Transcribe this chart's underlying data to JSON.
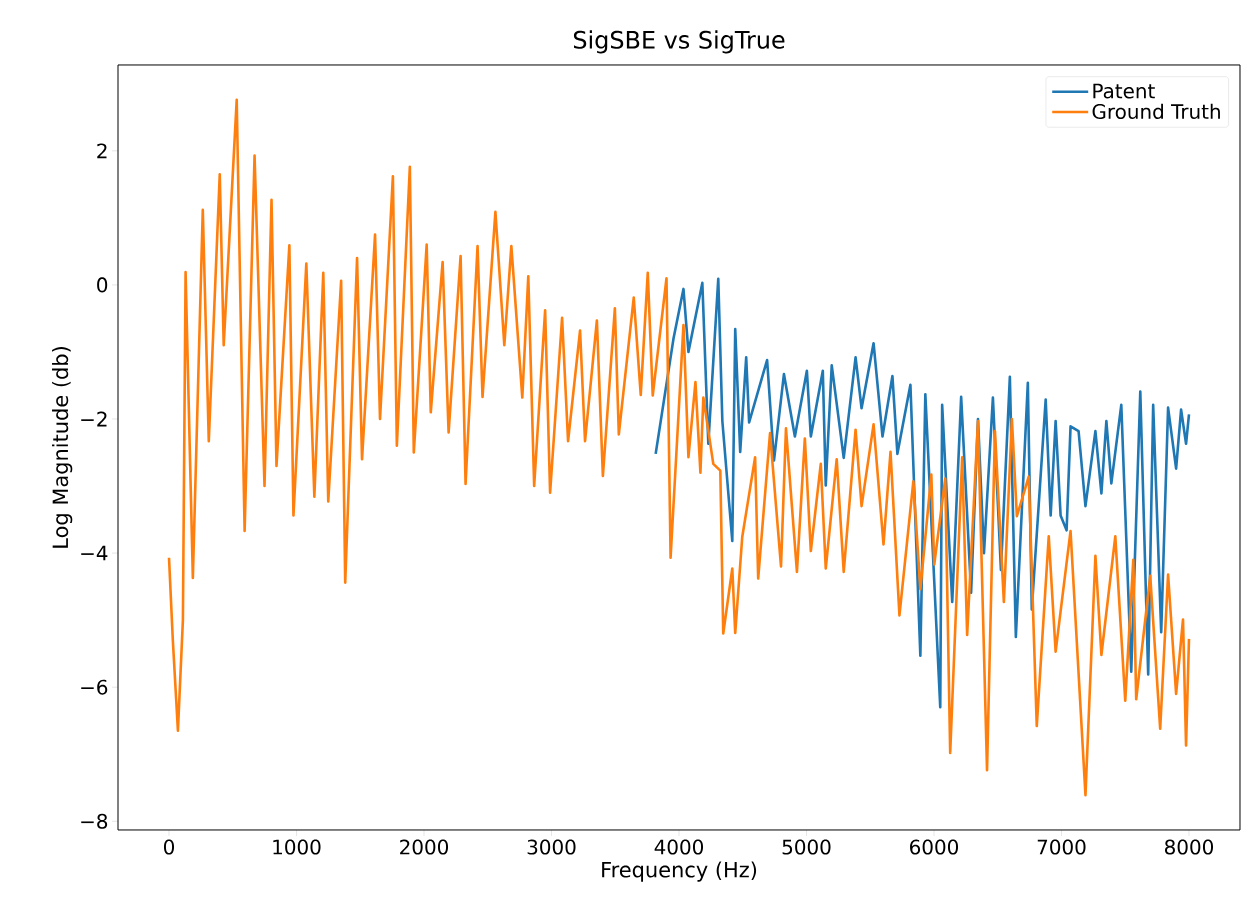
{
  "chart_data": {
    "type": "line",
    "title": "SigSBE vs SigTrue",
    "xlabel": "Frequency (Hz)",
    "ylabel": "Log Magnitude (db)",
    "xlim": [
      -400,
      8400
    ],
    "ylim": [
      -8.13,
      3.28
    ],
    "xticks": [
      0,
      1000,
      2000,
      3000,
      4000,
      5000,
      6000,
      7000,
      8000
    ],
    "yticks": [
      {
        "value": -8,
        "label": "−8"
      },
      {
        "value": -6,
        "label": "−6"
      },
      {
        "value": -4,
        "label": "−4"
      },
      {
        "value": -2,
        "label": "−2"
      },
      0,
      2
    ],
    "legend": "top right",
    "marker": "none",
    "line_style": "solid",
    "series": [
      {
        "name": "Patent",
        "color": "#1f77b4",
        "x": [
          3817,
          3957,
          4035,
          4074,
          4183,
          4230,
          4308,
          4340,
          4418,
          4441,
          4480,
          4527,
          4550,
          4691,
          4745,
          4823,
          4909,
          5003,
          5034,
          5128,
          5151,
          5198,
          5292,
          5385,
          5432,
          5526,
          5596,
          5674,
          5713,
          5815,
          5893,
          5932,
          6049,
          6064,
          6143,
          6213,
          6291,
          6345,
          6392,
          6462,
          6525,
          6595,
          6642,
          6736,
          6767,
          6876,
          6915,
          6954,
          6993,
          7040,
          7071,
          7134,
          7188,
          7266,
          7313,
          7352,
          7391,
          7469,
          7547,
          7618,
          7680,
          7719,
          7782,
          7836,
          7899,
          7938,
          7977,
          8000
        ],
        "values": [
          -2.52,
          -0.8,
          -0.06,
          -1.0,
          0.03,
          -2.37,
          0.09,
          -2.03,
          -3.82,
          -0.66,
          -2.49,
          -1.08,
          -2.05,
          -1.12,
          -2.62,
          -1.33,
          -2.26,
          -1.28,
          -2.26,
          -1.28,
          -2.99,
          -1.2,
          -2.58,
          -1.08,
          -1.84,
          -0.87,
          -2.26,
          -1.36,
          -2.52,
          -1.49,
          -5.53,
          -1.63,
          -6.3,
          -1.79,
          -4.73,
          -1.67,
          -4.59,
          -2.0,
          -4.0,
          -1.68,
          -4.25,
          -1.37,
          -5.25,
          -1.46,
          -4.84,
          -1.71,
          -3.44,
          -2.03,
          -3.44,
          -3.66,
          -2.11,
          -2.18,
          -3.3,
          -2.18,
          -3.11,
          -2.03,
          -2.96,
          -1.79,
          -5.77,
          -1.59,
          -5.81,
          -1.79,
          -5.18,
          -1.83,
          -2.74,
          -1.86,
          -2.37,
          -1.93
        ]
      },
      {
        "name": "Ground Truth",
        "color": "#ff7f0e",
        "x": [
          0,
          30,
          70,
          109,
          130,
          187,
          265,
          312,
          398,
          429,
          531,
          593,
          671,
          749,
          804,
          843,
          944,
          976,
          1077,
          1140,
          1210,
          1249,
          1350,
          1382,
          1475,
          1514,
          1616,
          1655,
          1756,
          1787,
          1889,
          1920,
          2021,
          2053,
          2146,
          2193,
          2287,
          2326,
          2420,
          2459,
          2560,
          2630,
          2685,
          2771,
          2818,
          2864,
          2950,
          2989,
          3083,
          3130,
          3224,
          3263,
          3356,
          3403,
          3497,
          3528,
          3645,
          3700,
          3755,
          3794,
          3902,
          3934,
          4035,
          4074,
          4129,
          4168,
          4191,
          4269,
          4324,
          4347,
          4418,
          4441,
          4496,
          4597,
          4621,
          4714,
          4800,
          4839,
          4925,
          4987,
          5034,
          5112,
          5151,
          5237,
          5292,
          5385,
          5432,
          5526,
          5604,
          5659,
          5729,
          5838,
          5893,
          5979,
          6002,
          6088,
          6127,
          6221,
          6260,
          6345,
          6416,
          6478,
          6548,
          6611,
          6650,
          6743,
          6806,
          6900,
          6954,
          7071,
          7188,
          7266,
          7313,
          7422,
          7500,
          7563,
          7586,
          7696,
          7774,
          7836,
          7899,
          7953,
          7977,
          8000
        ],
        "values": [
          -4.07,
          -5.3,
          -6.65,
          -5.0,
          0.19,
          -4.37,
          1.12,
          -2.33,
          1.65,
          -0.9,
          2.76,
          -3.67,
          1.93,
          -3.0,
          1.27,
          -2.7,
          0.59,
          -3.44,
          0.32,
          -3.16,
          0.18,
          -3.23,
          0.06,
          -4.44,
          0.4,
          -2.6,
          0.75,
          -2.0,
          1.62,
          -2.4,
          1.76,
          -2.5,
          0.6,
          -1.9,
          0.34,
          -2.2,
          0.43,
          -2.97,
          0.58,
          -1.67,
          1.09,
          -0.9,
          0.58,
          -1.68,
          0.13,
          -3.0,
          -0.38,
          -3.1,
          -0.49,
          -2.33,
          -0.68,
          -2.33,
          -0.53,
          -2.85,
          -0.35,
          -2.23,
          -0.19,
          -1.64,
          0.18,
          -1.65,
          0.1,
          -4.07,
          -0.6,
          -2.57,
          -1.45,
          -2.8,
          -1.68,
          -2.67,
          -2.77,
          -5.2,
          -4.23,
          -5.19,
          -3.76,
          -2.57,
          -4.38,
          -2.21,
          -4.2,
          -2.14,
          -4.28,
          -2.29,
          -3.97,
          -2.67,
          -4.23,
          -2.6,
          -4.28,
          -2.16,
          -3.3,
          -2.08,
          -3.87,
          -2.49,
          -4.93,
          -2.93,
          -4.54,
          -2.83,
          -4.17,
          -2.89,
          -6.98,
          -2.57,
          -5.22,
          -2.03,
          -7.24,
          -2.18,
          -4.73,
          -2.0,
          -3.45,
          -2.86,
          -6.58,
          -3.75,
          -5.47,
          -3.67,
          -7.61,
          -4.04,
          -5.52,
          -3.75,
          -6.2,
          -4.1,
          -6.18,
          -4.34,
          -6.62,
          -4.32,
          -6.1,
          -4.99,
          -6.87,
          -5.28
        ]
      }
    ]
  }
}
